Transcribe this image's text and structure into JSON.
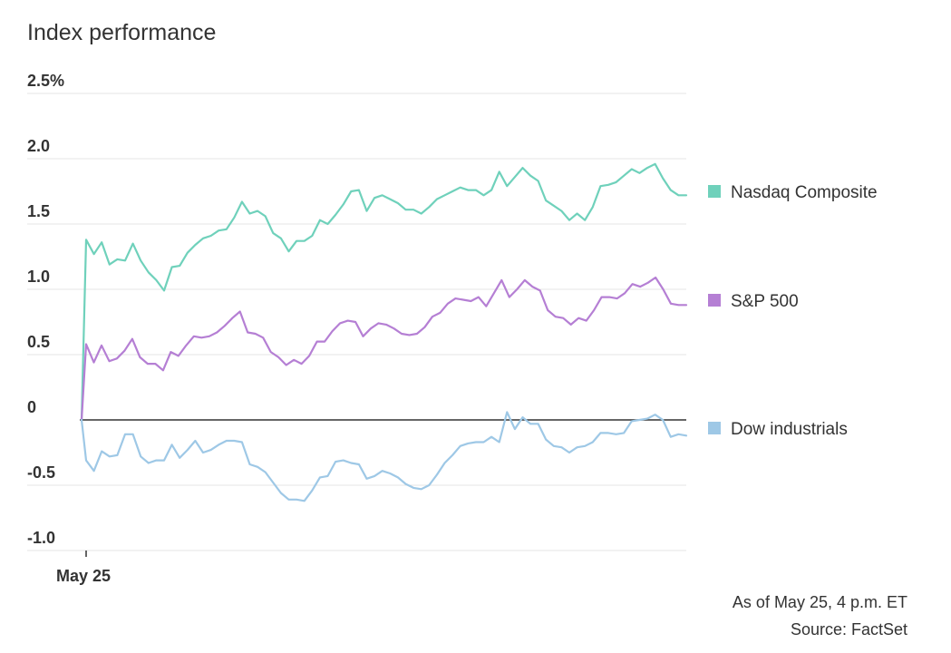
{
  "chart_data": {
    "type": "line",
    "title": "Index performance",
    "y_tick_labels": [
      "2.5%",
      "2.0",
      "1.5",
      "1.0",
      "0.5",
      "0",
      "-0.5",
      "-1.0"
    ],
    "y_ticks": [
      2.5,
      2.0,
      1.5,
      1.0,
      0.5,
      0,
      -0.5,
      -1.0
    ],
    "ylim": [
      -1.0,
      2.5
    ],
    "x_tick_labels": [
      "May 25"
    ],
    "grid": true,
    "legend_placement": "right",
    "series": [
      {
        "name": "Nasdaq Composite",
        "color": "#6fd1bb",
        "values": [
          0,
          1.38,
          1.27,
          1.36,
          1.19,
          1.23,
          1.22,
          1.35,
          1.22,
          1.13,
          1.07,
          0.99,
          1.17,
          1.18,
          1.28,
          1.34,
          1.39,
          1.41,
          1.45,
          1.46,
          1.55,
          1.67,
          1.58,
          1.6,
          1.56,
          1.43,
          1.39,
          1.29,
          1.37,
          1.37,
          1.41,
          1.53,
          1.5,
          1.57,
          1.65,
          1.75,
          1.76,
          1.6,
          1.7,
          1.72,
          1.69,
          1.66,
          1.61,
          1.61,
          1.58,
          1.63,
          1.69,
          1.72,
          1.75,
          1.78,
          1.76,
          1.76,
          1.72,
          1.76,
          1.9,
          1.79,
          1.86,
          1.93,
          1.87,
          1.83,
          1.68,
          1.64,
          1.6,
          1.53,
          1.58,
          1.53,
          1.63,
          1.79,
          1.8,
          1.82,
          1.87,
          1.92,
          1.89,
          1.93,
          1.96,
          1.85,
          1.76,
          1.72,
          1.72
        ]
      },
      {
        "name": "S&P 500",
        "color": "#b57fd4",
        "values": [
          0,
          0.58,
          0.44,
          0.57,
          0.45,
          0.47,
          0.53,
          0.62,
          0.48,
          0.43,
          0.43,
          0.38,
          0.52,
          0.49,
          0.57,
          0.64,
          0.63,
          0.64,
          0.67,
          0.72,
          0.78,
          0.83,
          0.67,
          0.66,
          0.63,
          0.52,
          0.48,
          0.42,
          0.46,
          0.43,
          0.49,
          0.6,
          0.6,
          0.68,
          0.74,
          0.76,
          0.75,
          0.64,
          0.7,
          0.74,
          0.73,
          0.7,
          0.66,
          0.65,
          0.66,
          0.71,
          0.79,
          0.82,
          0.89,
          0.93,
          0.92,
          0.91,
          0.94,
          0.87,
          0.97,
          1.07,
          0.94,
          1.0,
          1.07,
          1.02,
          0.99,
          0.84,
          0.79,
          0.78,
          0.73,
          0.78,
          0.76,
          0.84,
          0.94,
          0.94,
          0.93,
          0.97,
          1.04,
          1.02,
          1.05,
          1.09,
          1.0,
          0.89,
          0.88,
          0.88
        ]
      },
      {
        "name": "Dow industrials",
        "color": "#9ec8e6",
        "values": [
          0,
          -0.31,
          -0.39,
          -0.24,
          -0.28,
          -0.27,
          -0.11,
          -0.11,
          -0.28,
          -0.33,
          -0.31,
          -0.31,
          -0.19,
          -0.29,
          -0.23,
          -0.16,
          -0.25,
          -0.23,
          -0.19,
          -0.16,
          -0.16,
          -0.17,
          -0.34,
          -0.36,
          -0.4,
          -0.48,
          -0.56,
          -0.61,
          -0.61,
          -0.62,
          -0.54,
          -0.44,
          -0.43,
          -0.32,
          -0.31,
          -0.33,
          -0.34,
          -0.45,
          -0.43,
          -0.39,
          -0.41,
          -0.44,
          -0.49,
          -0.52,
          -0.53,
          -0.5,
          -0.42,
          -0.33,
          -0.27,
          -0.2,
          -0.18,
          -0.17,
          -0.17,
          -0.13,
          -0.17,
          0.06,
          -0.07,
          0.02,
          -0.03,
          -0.03,
          -0.15,
          -0.2,
          -0.21,
          -0.25,
          -0.21,
          -0.2,
          -0.17,
          -0.1,
          -0.1,
          -0.11,
          -0.1,
          -0.01,
          0.0,
          0.01,
          0.04,
          0.0,
          -0.13,
          -0.11,
          -0.12
        ]
      }
    ]
  },
  "footer": {
    "as_of": "As of May 25, 4 p.m. ET",
    "source": "Source: FactSet"
  }
}
